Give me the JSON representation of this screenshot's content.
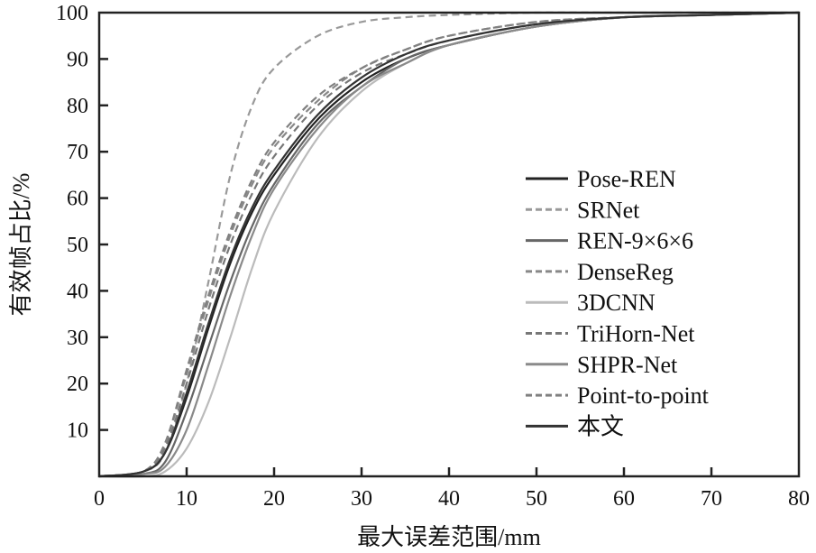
{
  "chart_data": {
    "type": "line",
    "title": "",
    "xlabel": "最大误差范围/mm",
    "ylabel": "有效帧占比/%",
    "xlim": [
      0,
      80
    ],
    "ylim": [
      0,
      100
    ],
    "xticks": [
      "0",
      "10",
      "20",
      "30",
      "40",
      "50",
      "60",
      "70",
      "80"
    ],
    "yticks": [
      "10",
      "20",
      "30",
      "40",
      "50",
      "60",
      "70",
      "80",
      "90",
      "100"
    ],
    "legend_position": "center-right",
    "x": [
      0,
      5,
      7.5,
      10,
      12.5,
      15,
      17.5,
      20,
      25,
      30,
      35,
      40,
      50,
      60,
      70,
      80
    ],
    "series": [
      {
        "name": "Pose-REN",
        "color": "#222222",
        "dash": false,
        "values": [
          0,
          1,
          5,
          17,
          32,
          46,
          57,
          65,
          77,
          85,
          90,
          93,
          97,
          99,
          99.5,
          100
        ]
      },
      {
        "name": "SRNet",
        "color": "#999999",
        "dash": true,
        "values": [
          0,
          1,
          5,
          20,
          42,
          65,
          80,
          88,
          95,
          98,
          99,
          99.5,
          100,
          100,
          100,
          100
        ]
      },
      {
        "name": "REN-9×6×6",
        "color": "#666666",
        "dash": false,
        "values": [
          0,
          0.5,
          3,
          14,
          28,
          42,
          54,
          63,
          76,
          84,
          90,
          93,
          97,
          99,
          99.5,
          100
        ]
      },
      {
        "name": "DenseReg",
        "color": "#888888",
        "dash": true,
        "values": [
          0,
          1,
          7,
          22,
          38,
          52,
          63,
          71,
          81,
          88,
          92,
          95,
          98,
          99,
          99.5,
          100
        ]
      },
      {
        "name": "3DCNN",
        "color": "#bbbbbb",
        "dash": false,
        "values": [
          0,
          0,
          1,
          6,
          16,
          30,
          45,
          57,
          73,
          83,
          89,
          93,
          97,
          99,
          99.5,
          100
        ]
      },
      {
        "name": "TriHorn-Net",
        "color": "#777777",
        "dash": true,
        "values": [
          0,
          1,
          6,
          20,
          36,
          50,
          61,
          69,
          80,
          87,
          91,
          94,
          97.5,
          99,
          99.5,
          100
        ]
      },
      {
        "name": "SHPR-Net",
        "color": "#8a8a8a",
        "dash": false,
        "values": [
          0,
          0.5,
          2,
          10,
          24,
          39,
          52,
          62,
          75,
          84,
          89,
          93,
          97,
          99,
          99.5,
          100
        ]
      },
      {
        "name": "Point-to-point",
        "color": "#808080",
        "dash": true,
        "values": [
          0,
          1,
          7,
          23,
          39,
          53,
          64,
          72,
          82,
          88,
          92,
          95,
          98,
          99,
          99.5,
          100
        ]
      },
      {
        "name": "本文",
        "color": "#333333",
        "dash": false,
        "values": [
          0,
          1,
          5,
          18,
          33,
          47,
          58,
          66,
          78,
          86,
          91,
          94,
          97.5,
          99,
          99.5,
          100
        ]
      }
    ]
  }
}
